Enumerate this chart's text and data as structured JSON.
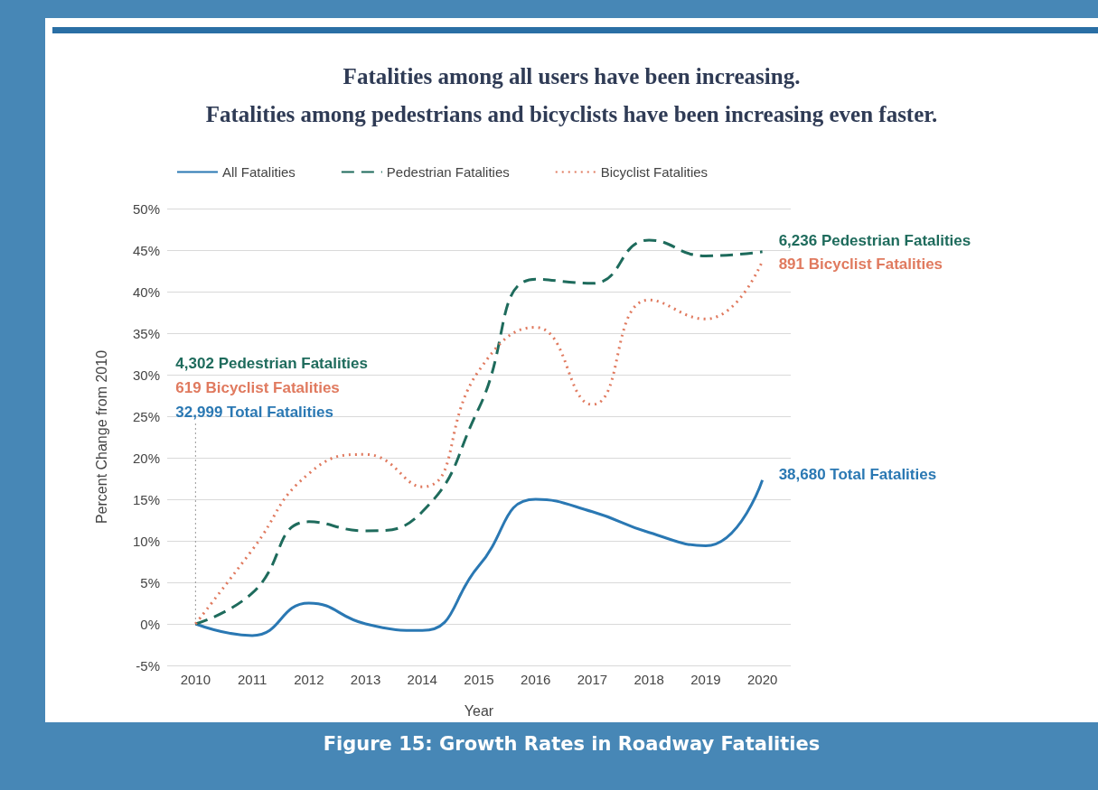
{
  "chart_data": {
    "type": "line",
    "title": "Fatalities among all users have been increasing.\nFatalities among pedestrians and bicyclists have been increasing even faster.",
    "xlabel": "Year",
    "ylabel": "Percent Change from 2010",
    "categories": [
      "2010",
      "2011",
      "2012",
      "2013",
      "2014",
      "2015",
      "2016",
      "2017",
      "2018",
      "2019",
      "2020"
    ],
    "series": [
      {
        "name": "All Fatalities",
        "color": "#2a78b3",
        "line_style": "solid",
        "values": [
          0,
          -1.4,
          2.5,
          0,
          -0.8,
          7,
          15,
          13.5,
          11,
          9.4,
          17.3
        ]
      },
      {
        "name": "Pedestrian Fatalities",
        "color": "#1e6b5c",
        "line_style": "dashed",
        "values": [
          0,
          3.7,
          12.3,
          11.2,
          13.5,
          26,
          41.5,
          41,
          46.2,
          44.3,
          44.8
        ]
      },
      {
        "name": "Bicyclist Fatalities",
        "color": "#e07a5f",
        "line_style": "dotted",
        "values": [
          0,
          8.9,
          18.1,
          20.4,
          16.5,
          30.5,
          35.7,
          26.4,
          39,
          36.7,
          43.7
        ]
      }
    ],
    "ylim": [
      -5,
      50
    ],
    "yticks": [
      {
        "value": -5,
        "label": "-5%"
      },
      {
        "value": 0,
        "label": "0%"
      },
      {
        "value": 5,
        "label": "5%"
      },
      {
        "value": 10,
        "label": "10%"
      },
      {
        "value": 15,
        "label": "15%"
      },
      {
        "value": 20,
        "label": "20%"
      },
      {
        "value": 25,
        "label": "25%"
      },
      {
        "value": 30,
        "label": "30%"
      },
      {
        "value": 35,
        "label": "35%"
      },
      {
        "value": 40,
        "label": "40%"
      },
      {
        "value": 45,
        "label": "45%"
      },
      {
        "value": 50,
        "label": "50%"
      }
    ],
    "grid": "y",
    "legend": "top",
    "marker": "none",
    "annotations": [
      "4,302 Pedestrian Fatalities",
      "619 Bicyclist Fatalities",
      {
        "text": "32,999 Total Fatalities",
        "x": "2010",
        "y": 0
      },
      {
        "text": "6,236 Pedestrian Fatalities",
        "x": "2020",
        "y": 44.8
      },
      {
        "text": "891 Bicyclist Fatalities",
        "x": "2020",
        "y": 43.7
      },
      {
        "text": "38,680 Total Fatalities",
        "x": "2020",
        "y": 17.3
      },
      "Figure 15: Growth Rates in Roadway Fatalities"
    ]
  }
}
